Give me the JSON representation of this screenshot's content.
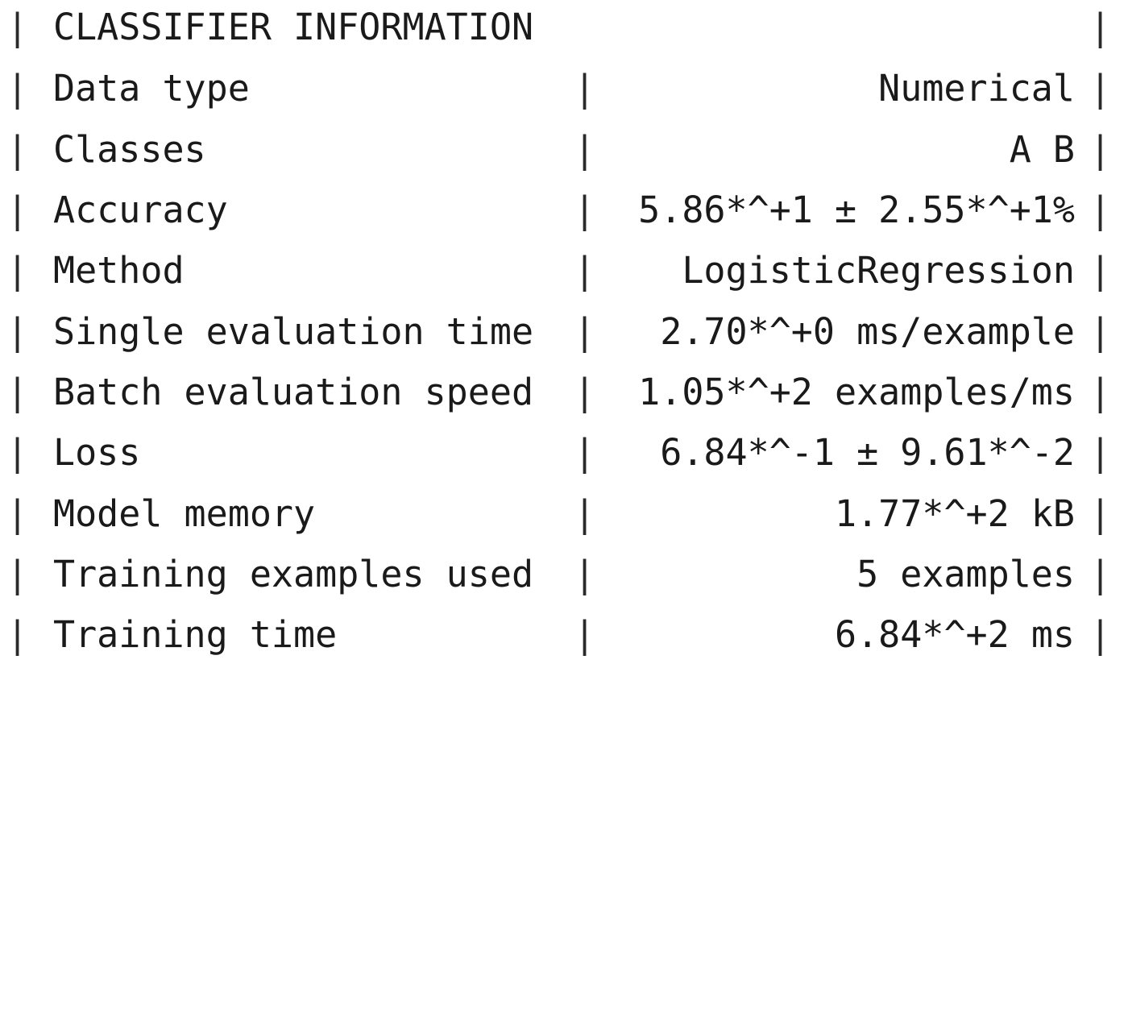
{
  "table": {
    "title": "CLASSIFIER INFORMATION",
    "rows": [
      {
        "label": "Data type",
        "value": "Numerical"
      },
      {
        "label": "Classes",
        "value": "A B"
      },
      {
        "label": "Accuracy",
        "value": "5.86*^+1 ± 2.55*^+1%"
      },
      {
        "label": "Method",
        "value": "LogisticRegression"
      },
      {
        "label": "Single evaluation time",
        "value": "2.70*^+0 ms/example"
      },
      {
        "label": "Batch evaluation speed",
        "value": "1.05*^+2 examples/ms"
      },
      {
        "label": "Loss",
        "value": "6.84*^-1 ± 9.61*^-2"
      },
      {
        "label": "Model memory",
        "value": "1.77*^+2 kB"
      },
      {
        "label": "Training examples used",
        "value": "5 examples"
      },
      {
        "label": "Training time",
        "value": "6.84*^+2 ms"
      }
    ]
  }
}
